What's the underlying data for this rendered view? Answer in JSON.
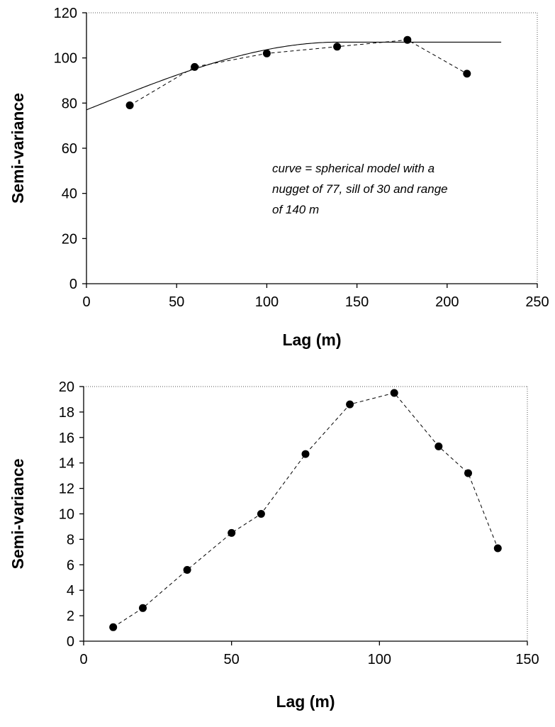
{
  "chart_data": [
    {
      "type": "scatter",
      "title": "",
      "xlabel": "Lag (m)",
      "ylabel": "Semi-variance",
      "xlim": [
        0,
        250
      ],
      "ylim": [
        0,
        120
      ],
      "xticks": [
        0,
        50,
        100,
        150,
        200,
        250
      ],
      "yticks": [
        0,
        20,
        40,
        60,
        80,
        100,
        120
      ],
      "grid": false,
      "series": [
        {
          "style": "dashed-line-with-markers",
          "x": [
            24,
            60,
            100,
            139,
            178,
            211
          ],
          "y": [
            79,
            96,
            102,
            105,
            108,
            93
          ]
        },
        {
          "style": "solid-model-curve",
          "model": {
            "kind": "spherical",
            "nugget": 77,
            "sill": 30,
            "range": 140,
            "x_max": 230
          }
        }
      ],
      "annotation": {
        "lines": [
          "curve = spherical model with a",
          "nugget of 77, sill of 30 and range",
          "of 140 m"
        ]
      }
    },
    {
      "type": "scatter",
      "title": "",
      "xlabel": "Lag (m)",
      "ylabel": "Semi-variance",
      "xlim": [
        0,
        150
      ],
      "ylim": [
        0,
        20
      ],
      "xticks": [
        0,
        50,
        100,
        150
      ],
      "yticks": [
        0,
        2,
        4,
        6,
        8,
        10,
        12,
        14,
        16,
        18,
        20
      ],
      "grid": false,
      "series": [
        {
          "style": "dashed-line-with-markers",
          "x": [
            10,
            20,
            35,
            50,
            60,
            75,
            90,
            105,
            120,
            130,
            140
          ],
          "y": [
            1.1,
            2.6,
            5.6,
            8.5,
            10.0,
            14.7,
            18.6,
            19.5,
            15.3,
            13.2,
            7.3
          ]
        }
      ]
    }
  ]
}
